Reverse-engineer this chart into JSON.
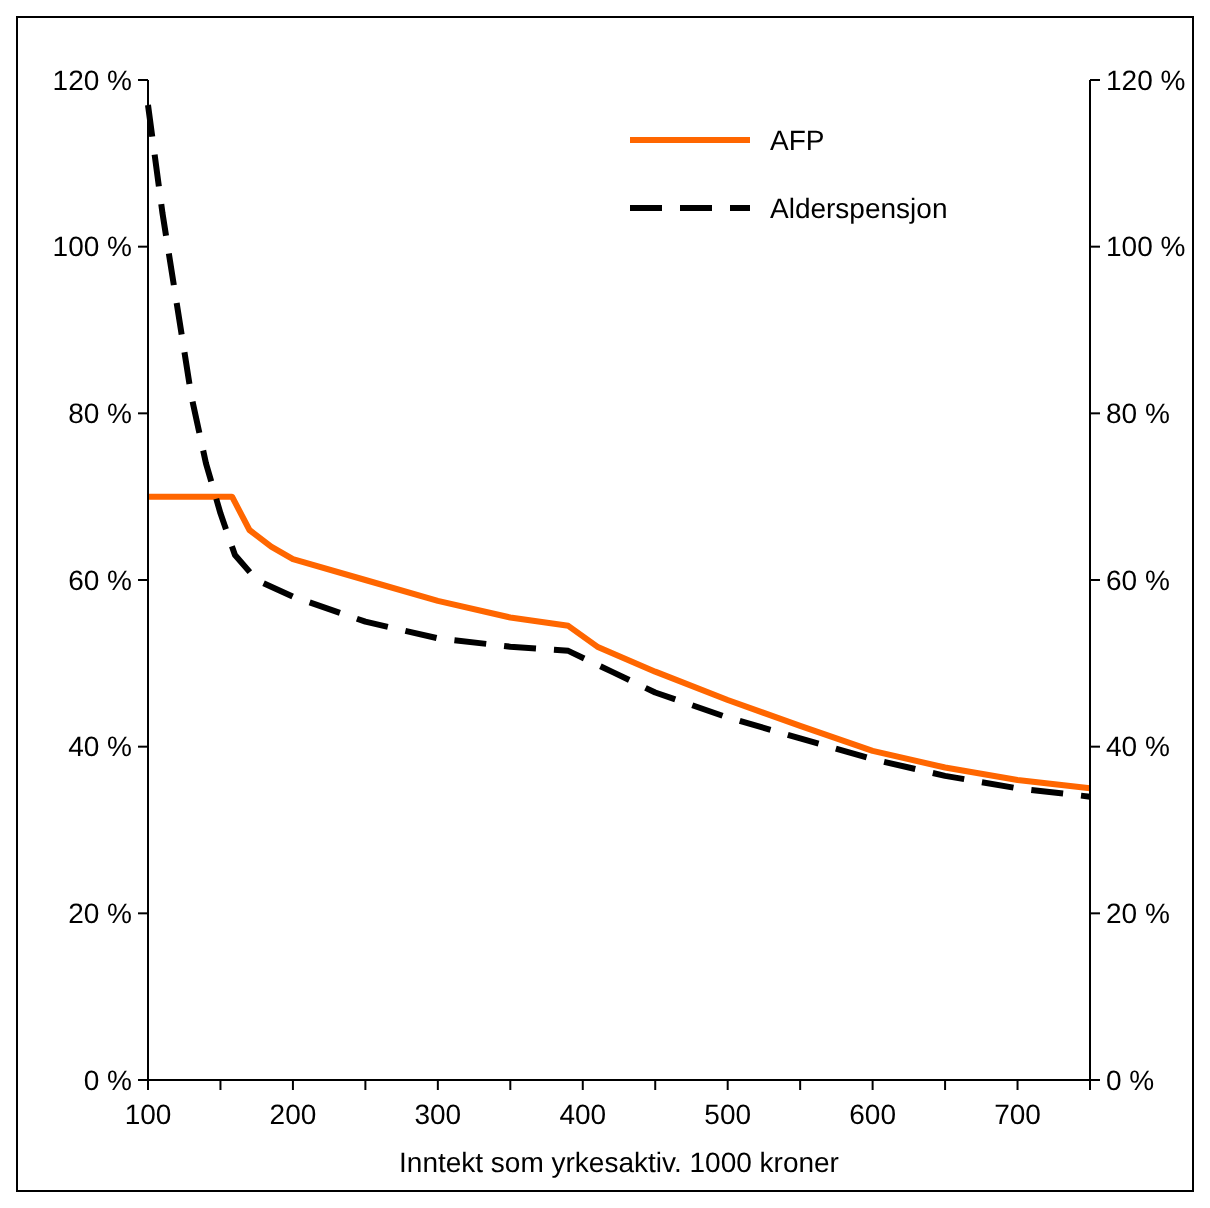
{
  "chart_data": {
    "type": "line",
    "xlabel": "Inntekt som yrkesaktiv. 1000 kroner",
    "xlim": [
      100,
      750
    ],
    "xticks": [
      100,
      {
        "value": 150,
        "label": null
      },
      200,
      {
        "value": 250,
        "label": null
      },
      300,
      {
        "value": 350,
        "label": null
      },
      400,
      {
        "value": 450,
        "label": null
      },
      500,
      {
        "value": 550,
        "label": null
      },
      600,
      {
        "value": 650,
        "label": null
      },
      700,
      {
        "value": 750,
        "label": null
      }
    ],
    "ylim": [
      0,
      120
    ],
    "yticks": [
      {
        "value": 0,
        "label": "0 %"
      },
      {
        "value": 20,
        "label": "20 %"
      },
      {
        "value": 40,
        "label": "40 %"
      },
      {
        "value": 60,
        "label": "60 %"
      },
      {
        "value": 80,
        "label": "80 %"
      },
      {
        "value": 100,
        "label": "100 %"
      },
      {
        "value": 120,
        "label": "120 %"
      }
    ],
    "y2lim": [
      0,
      120
    ],
    "y2ticks": [
      {
        "value": 0,
        "label": "0 %"
      },
      {
        "value": 20,
        "label": "20 %"
      },
      {
        "value": 40,
        "label": "40 %"
      },
      {
        "value": 60,
        "label": "60 %"
      },
      {
        "value": 80,
        "label": "80 %"
      },
      {
        "value": 100,
        "label": "100 %"
      },
      {
        "value": 120,
        "label": "120 %"
      }
    ],
    "grid": false,
    "legend": "top right",
    "series": [
      {
        "name": "AFP",
        "color": "#ff6600",
        "line_style": "solid",
        "x": [
          100,
          158,
          170,
          185,
          200,
          250,
          300,
          350,
          390,
          410,
          450,
          500,
          550,
          600,
          650,
          700,
          750
        ],
        "values": [
          70,
          70,
          66,
          64,
          62.5,
          60,
          57.5,
          55.5,
          54.5,
          52,
          49,
          45.6,
          42.5,
          39.5,
          37.5,
          36,
          35
        ]
      },
      {
        "name": "Alderspensjon",
        "color": "#000000",
        "line_style": "dashed",
        "x": [
          100,
          110,
          120,
          130,
          140,
          150,
          160,
          175,
          200,
          250,
          300,
          350,
          390,
          420,
          450,
          500,
          550,
          600,
          650,
          700,
          750
        ],
        "values": [
          117,
          104,
          93,
          82,
          74,
          68,
          63,
          60,
          58,
          55,
          53,
          52,
          51.5,
          49,
          46.5,
          43.5,
          41,
          38.5,
          36.5,
          35,
          34
        ]
      }
    ]
  }
}
